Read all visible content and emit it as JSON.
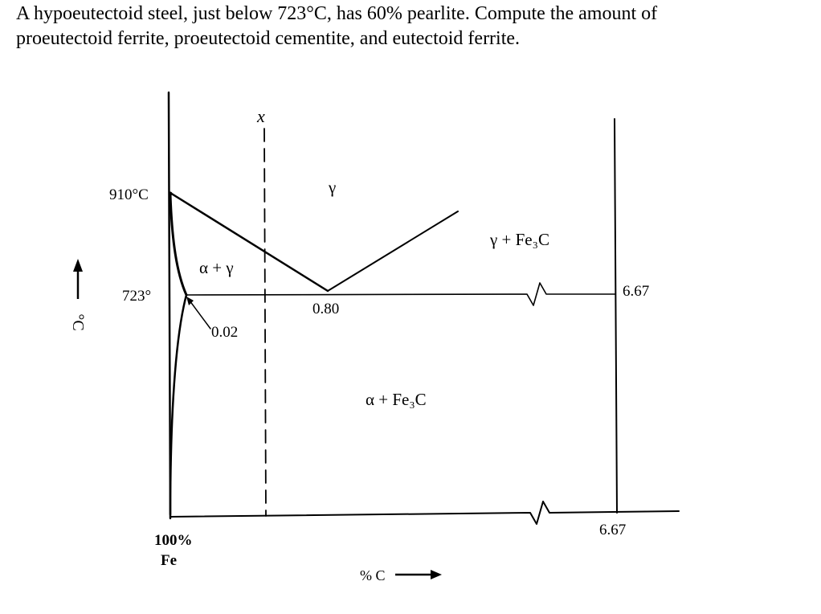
{
  "question": {
    "line1": "A hypoeutectoid steel, just below 723°C, has 60% pearlite. Compute the amount of",
    "line2": "proeutectoid ferrite, proeutectoid cementite, and eutectoid ferrite."
  },
  "diagram": {
    "temperature_labels": {
      "t910": "910°C",
      "t723": "723°"
    },
    "composition_labels": {
      "c002": "0.02",
      "c080": "0.80",
      "c667_top": "6.67",
      "c667_bottom": "6.67"
    },
    "phase_labels": {
      "gamma": "γ",
      "alpha_gamma": "α + γ",
      "gamma_fe3c": "γ + Fe₃C",
      "alpha_fe3c": "α + Fe₃C"
    },
    "composition_line_label": "x",
    "origin_label": {
      "line1": "100%",
      "line2": "Fe"
    },
    "x_axis_label": "% C",
    "y_axis_label": "°C"
  }
}
